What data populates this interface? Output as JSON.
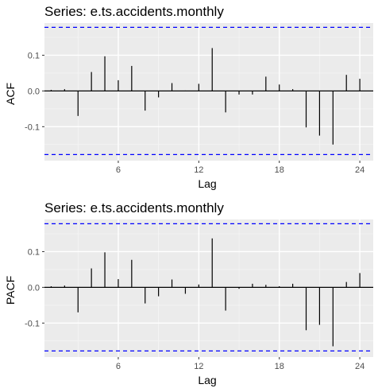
{
  "chart_data": [
    {
      "type": "bar",
      "title": "Series: e.ts.accidents.monthly",
      "xlabel": "Lag",
      "ylabel": "ACF",
      "x_ticks": [
        6,
        12,
        18,
        24
      ],
      "y_ticks": [
        -0.1,
        0.0,
        0.1
      ],
      "y_tick_labels": [
        "-0.1",
        "0.0",
        "0.1"
      ],
      "xlim": [
        0.5,
        25.0
      ],
      "ylim": [
        -0.195,
        0.19
      ],
      "ci": 0.178,
      "lags": [
        1,
        2,
        3,
        4,
        5,
        6,
        7,
        8,
        9,
        10,
        11,
        12,
        13,
        14,
        15,
        16,
        17,
        18,
        19,
        20,
        21,
        22,
        23,
        24
      ],
      "values": [
        0.003,
        0.005,
        -0.07,
        0.053,
        0.097,
        0.03,
        0.07,
        -0.055,
        -0.018,
        0.022,
        0.001,
        0.02,
        0.12,
        -0.06,
        -0.01,
        -0.01,
        0.04,
        0.018,
        0.005,
        -0.102,
        -0.125,
        -0.15,
        0.045,
        0.034
      ],
      "colors": {
        "panel": "#ebebeb",
        "grid_major": "#ffffff",
        "grid_minor": "#f5f5f5",
        "spike": "#000000",
        "ci": "#0000ff"
      },
      "grid": true
    },
    {
      "type": "bar",
      "title": "Series: e.ts.accidents.monthly",
      "xlabel": "Lag",
      "ylabel": "PACF",
      "x_ticks": [
        6,
        12,
        18,
        24
      ],
      "y_ticks": [
        -0.1,
        0.0,
        0.1
      ],
      "y_tick_labels": [
        "-0.1",
        "0.0",
        "0.1"
      ],
      "xlim": [
        0.5,
        25.0
      ],
      "ylim": [
        -0.195,
        0.19
      ],
      "ci": 0.178,
      "lags": [
        1,
        2,
        3,
        4,
        5,
        6,
        7,
        8,
        9,
        10,
        11,
        12,
        13,
        14,
        15,
        16,
        17,
        18,
        19,
        20,
        21,
        22,
        23,
        24
      ],
      "values": [
        0.003,
        0.005,
        -0.07,
        0.053,
        0.098,
        0.023,
        0.077,
        -0.045,
        -0.025,
        0.022,
        -0.018,
        0.008,
        0.137,
        -0.065,
        -0.004,
        0.01,
        0.007,
        0.003,
        0.01,
        -0.12,
        -0.105,
        -0.165,
        0.015,
        0.04
      ],
      "colors": {
        "panel": "#ebebeb",
        "grid_major": "#ffffff",
        "grid_minor": "#f5f5f5",
        "spike": "#000000",
        "ci": "#0000ff"
      },
      "grid": true
    }
  ]
}
